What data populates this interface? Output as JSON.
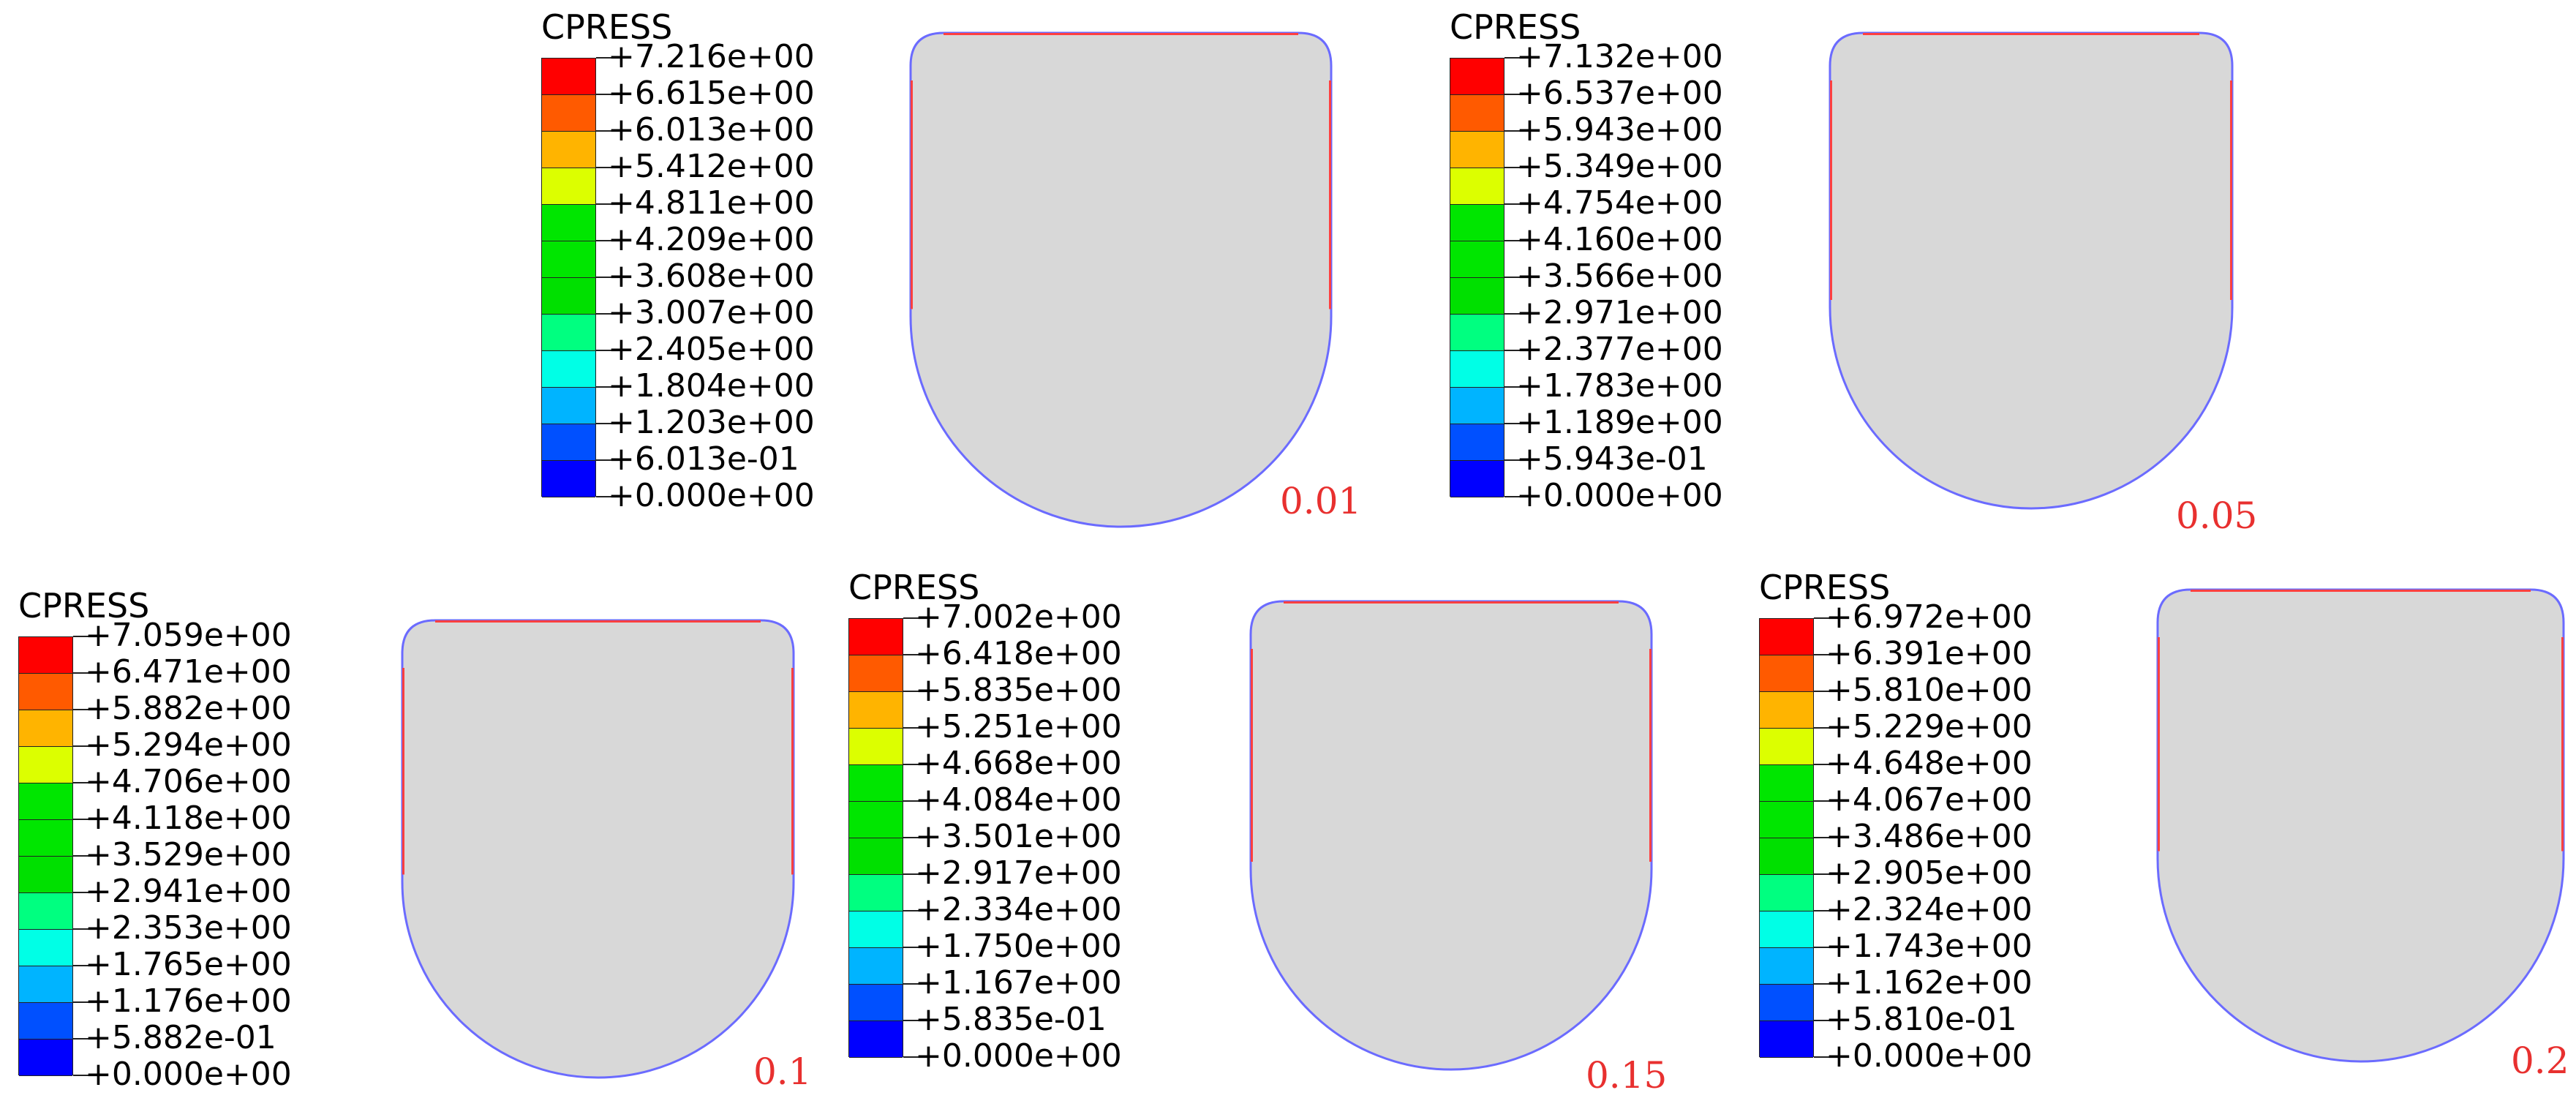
{
  "colors": {
    "scale": [
      "#ff0000",
      "#ff5a00",
      "#ffb400",
      "#dcff00",
      "#00e600",
      "#00e600",
      "#00e000",
      "#00ff80",
      "#00ffe6",
      "#00b4ff",
      "#0050ff",
      "#0000ff"
    ],
    "shape_fill": "#d8d8d8",
    "shape_edge_blue": "#6b6bff",
    "shape_edge_red": "#ff4040",
    "case_label": "#e8302f"
  },
  "panels": [
    {
      "title": "CPRESS",
      "case": "0.01",
      "ticks": [
        "+7.216e+00",
        "+6.615e+00",
        "+6.013e+00",
        "+5.412e+00",
        "+4.811e+00",
        "+4.209e+00",
        "+3.608e+00",
        "+3.007e+00",
        "+2.405e+00",
        "+1.804e+00",
        "+1.203e+00",
        "+6.013e-01",
        "+0.000e+00"
      ]
    },
    {
      "title": "CPRESS",
      "case": "0.05",
      "ticks": [
        "+7.132e+00",
        "+6.537e+00",
        "+5.943e+00",
        "+5.349e+00",
        "+4.754e+00",
        "+4.160e+00",
        "+3.566e+00",
        "+2.971e+00",
        "+2.377e+00",
        "+1.783e+00",
        "+1.189e+00",
        "+5.943e-01",
        "+0.000e+00"
      ]
    },
    {
      "title": "CPRESS",
      "case": "0.1",
      "ticks": [
        "+7.059e+00",
        "+6.471e+00",
        "+5.882e+00",
        "+5.294e+00",
        "+4.706e+00",
        "+4.118e+00",
        "+3.529e+00",
        "+2.941e+00",
        "+2.353e+00",
        "+1.765e+00",
        "+1.176e+00",
        "+5.882e-01",
        "+0.000e+00"
      ]
    },
    {
      "title": "CPRESS",
      "case": "0.15",
      "ticks": [
        "+7.002e+00",
        "+6.418e+00",
        "+5.835e+00",
        "+5.251e+00",
        "+4.668e+00",
        "+4.084e+00",
        "+3.501e+00",
        "+2.917e+00",
        "+2.334e+00",
        "+1.750e+00",
        "+1.167e+00",
        "+5.835e-01",
        "+0.000e+00"
      ]
    },
    {
      "title": "CPRESS",
      "case": "0.2",
      "ticks": [
        "+6.972e+00",
        "+6.391e+00",
        "+5.810e+00",
        "+5.229e+00",
        "+4.648e+00",
        "+4.067e+00",
        "+3.486e+00",
        "+2.905e+00",
        "+2.324e+00",
        "+1.743e+00",
        "+1.162e+00",
        "+5.810e-01",
        "+0.000e+00"
      ]
    }
  ]
}
